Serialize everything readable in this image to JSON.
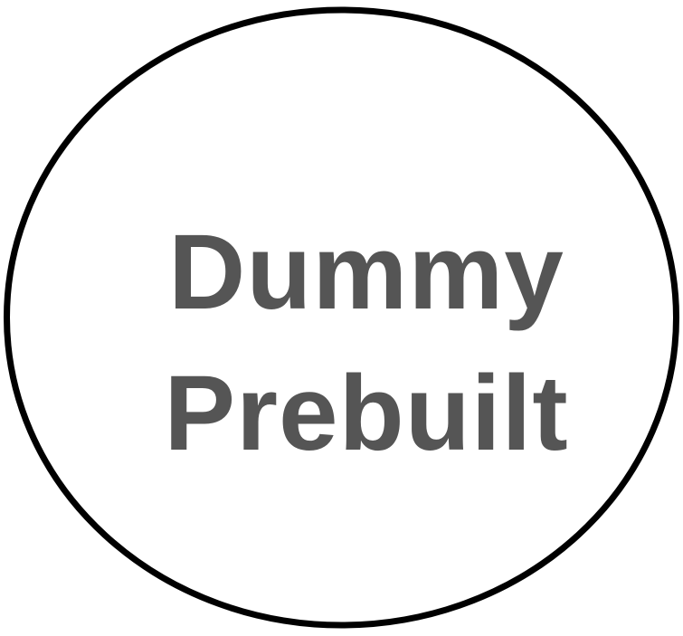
{
  "logo": {
    "line1": "Dummy",
    "line2": "Prebuilt",
    "text_color": "#555555",
    "stroke_color": "#000000",
    "background": "#ffffff"
  }
}
